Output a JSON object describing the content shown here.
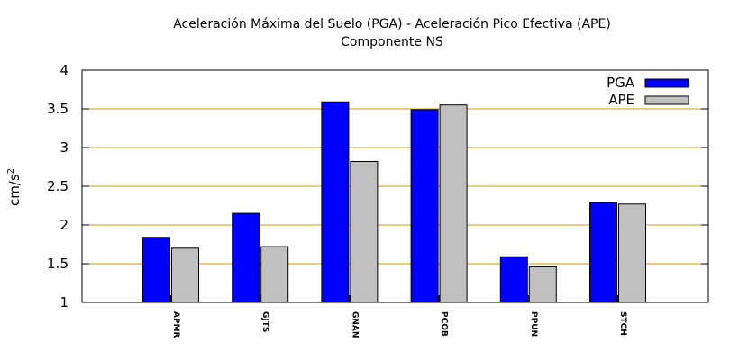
{
  "chart_data": {
    "type": "bar",
    "title": "Aceleración Máxima del Suelo (PGA) -  Aceleración Pico Efectiva (APE)",
    "subtitle": "Componente NS",
    "xlabel": "",
    "ylabel_base": "cm/s",
    "ylabel_exp": "2",
    "ylim": [
      1,
      4
    ],
    "yticks": [
      1,
      1.5,
      2,
      2.5,
      3,
      3.5,
      4
    ],
    "ytick_labels": [
      "1",
      "1.5",
      "2",
      "2.5",
      "3",
      "3.5",
      "4"
    ],
    "grid": true,
    "legend_position": "top-right",
    "categories": [
      "APMR",
      "GJTS",
      "GNAN",
      "PCOB",
      "PPUN",
      "STCH"
    ],
    "series": [
      {
        "name": "PGA",
        "values": [
          1.84,
          2.15,
          3.59,
          3.49,
          1.59,
          2.29
        ],
        "color": "#0000ff"
      },
      {
        "name": "APE",
        "values": [
          1.7,
          1.72,
          2.82,
          3.55,
          1.46,
          2.27
        ],
        "color": "#c0c0c0"
      }
    ],
    "grid_color": "#c8a000"
  }
}
